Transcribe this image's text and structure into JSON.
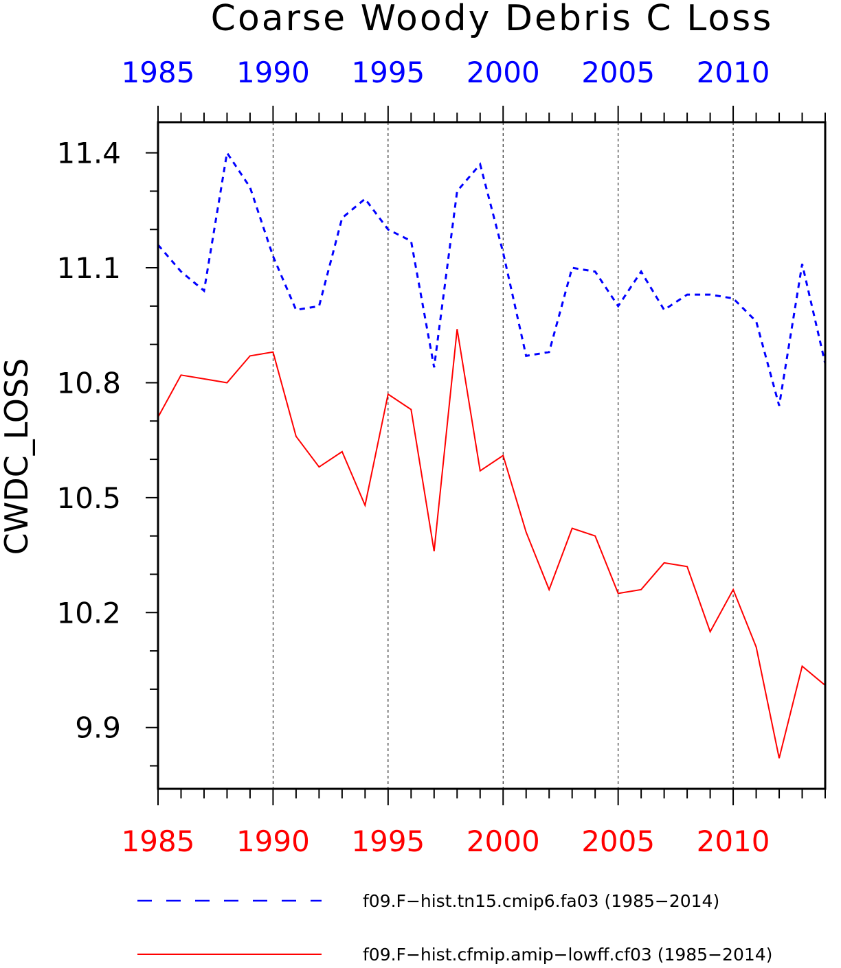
{
  "chart_data": {
    "type": "line",
    "title": "Coarse Woody Debris C Loss",
    "ylabel": "CWDC_LOSS",
    "xlabel": "",
    "xlim": [
      1985,
      2014
    ],
    "ylim": [
      9.74,
      11.48
    ],
    "x_ticks_major": [
      1985,
      1990,
      1995,
      2000,
      2005,
      2010
    ],
    "x_tick_labels_top": [
      "1985",
      "1990",
      "1995",
      "2000",
      "2005",
      "2010"
    ],
    "x_tick_labels_bottom": [
      "1985",
      "1990",
      "1995",
      "2000",
      "2005",
      "2010"
    ],
    "y_ticks_major": [
      9.9,
      10.2,
      10.5,
      10.8,
      11.1,
      11.4
    ],
    "y_tick_labels": [
      "9.9",
      "10.2",
      "10.5",
      "10.8",
      "11.1",
      "11.4"
    ],
    "grid": "vertical dashed lines at major x ticks",
    "legend_position": "bottom",
    "x": [
      1985,
      1986,
      1987,
      1988,
      1989,
      1990,
      1991,
      1992,
      1993,
      1994,
      1995,
      1996,
      1997,
      1998,
      1999,
      2000,
      2001,
      2002,
      2003,
      2004,
      2005,
      2006,
      2007,
      2008,
      2009,
      2010,
      2011,
      2012,
      2013,
      2014
    ],
    "series": [
      {
        "name": "f09.F−hist.tn15.cmip6.fa03 (1985−2014)",
        "color": "#0000ff",
        "style": "dashed",
        "values": [
          11.16,
          11.09,
          11.04,
          11.4,
          11.31,
          11.13,
          10.99,
          11.0,
          11.23,
          11.28,
          11.2,
          11.17,
          10.84,
          11.3,
          11.37,
          11.14,
          10.87,
          10.88,
          11.1,
          11.09,
          11.0,
          11.09,
          10.99,
          11.03,
          11.03,
          11.02,
          10.96,
          10.74,
          11.11,
          10.85
        ]
      },
      {
        "name": "f09.F−hist.cfmip.amip−lowff.cf03 (1985−2014)",
        "color": "#ff0000",
        "style": "solid",
        "values": [
          10.71,
          10.82,
          10.81,
          10.8,
          10.87,
          10.88,
          10.66,
          10.58,
          10.62,
          10.48,
          10.77,
          10.73,
          10.36,
          10.94,
          10.57,
          10.61,
          10.41,
          10.26,
          10.42,
          10.4,
          10.25,
          10.26,
          10.33,
          10.32,
          10.15,
          10.26,
          10.11,
          9.82,
          10.06,
          10.01
        ]
      }
    ]
  }
}
